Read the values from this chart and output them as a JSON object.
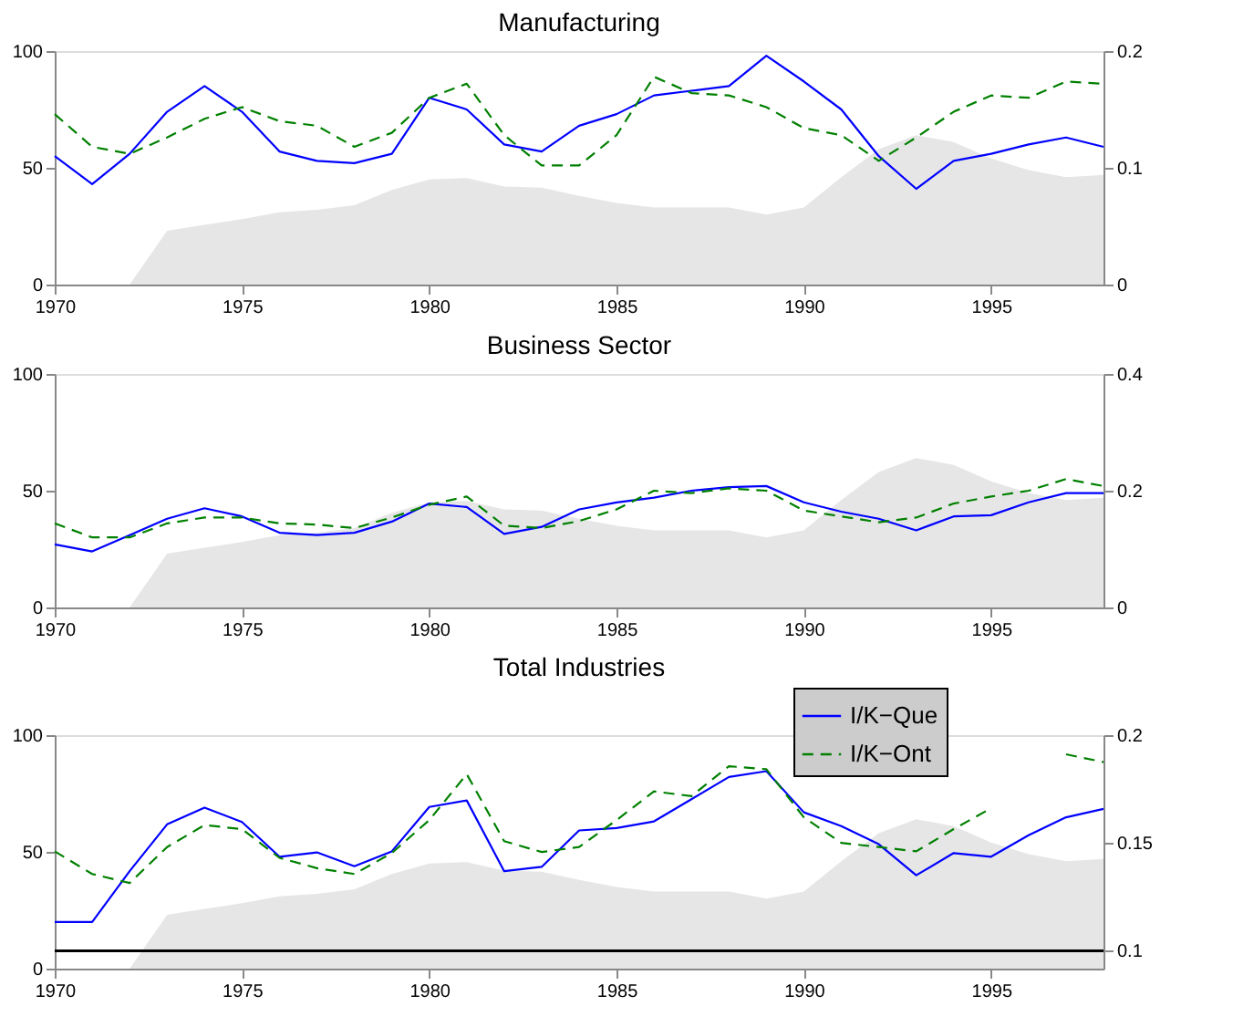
{
  "chart_data": [
    {
      "type": "line",
      "title": "Manufacturing",
      "x": [
        1970,
        1971,
        1972,
        1973,
        1974,
        1975,
        1976,
        1977,
        1978,
        1979,
        1980,
        1981,
        1982,
        1983,
        1984,
        1985,
        1986,
        1987,
        1988,
        1989,
        1990,
        1991,
        1992,
        1993,
        1994,
        1995,
        1996,
        1997,
        1998
      ],
      "xlim": [
        1970,
        1998
      ],
      "xticks": [
        1970,
        1975,
        1980,
        1985,
        1990,
        1995
      ],
      "ylim": [
        0,
        100
      ],
      "yticks": [
        0,
        50,
        100
      ],
      "y2lim": [
        0,
        0.2
      ],
      "y2ticks": [
        0,
        0.1,
        0.2
      ],
      "grid": false,
      "legend": false,
      "series": [
        {
          "type": "area",
          "color": "#e6e6e6",
          "values": [
            0,
            0,
            0,
            23,
            25.6,
            28,
            31,
            32,
            34,
            40.5,
            45,
            45.6,
            42,
            41.5,
            38,
            35,
            33,
            33,
            33,
            30,
            33,
            46,
            58,
            64,
            61,
            54,
            49,
            46,
            47
          ]
        },
        {
          "color": "#0000ff",
          "axis": "y2",
          "line_style": "solid",
          "values": [
            0.11,
            0.086,
            0.112,
            0.148,
            0.17,
            0.148,
            0.114,
            0.106,
            0.104,
            0.112,
            0.16,
            0.15,
            0.12,
            0.114,
            0.136,
            0.146,
            0.162,
            0.166,
            0.17,
            0.196,
            0.174,
            0.15,
            0.11,
            0.082,
            0.106,
            0.112,
            0.12,
            0.126,
            0.118
          ]
        },
        {
          "color": "#008000",
          "axis": "y2",
          "line_style": "dashed",
          "values": [
            0.146,
            0.118,
            0.112,
            0.126,
            0.142,
            0.152,
            0.14,
            0.136,
            0.118,
            0.13,
            0.16,
            0.172,
            0.128,
            0.102,
            0.102,
            0.128,
            0.178,
            0.164,
            0.162,
            0.152,
            0.134,
            0.128,
            0.106,
            0.126,
            0.148,
            0.162,
            0.16,
            0.174,
            0.172
          ]
        }
      ]
    },
    {
      "type": "line",
      "title": "Business Sector",
      "x": [
        1970,
        1971,
        1972,
        1973,
        1974,
        1975,
        1976,
        1977,
        1978,
        1979,
        1980,
        1981,
        1982,
        1983,
        1984,
        1985,
        1986,
        1987,
        1988,
        1989,
        1990,
        1991,
        1992,
        1993,
        1994,
        1995,
        1996,
        1997,
        1998
      ],
      "xlim": [
        1970,
        1998
      ],
      "xticks": [
        1970,
        1975,
        1980,
        1985,
        1990,
        1995
      ],
      "ylim": [
        0,
        100
      ],
      "yticks": [
        0,
        50,
        100
      ],
      "y2lim": [
        0,
        0.4
      ],
      "y2ticks": [
        0,
        0.2,
        0.4
      ],
      "grid": false,
      "legend": false,
      "series": [
        {
          "type": "area",
          "color": "#e6e6e6",
          "values": [
            0,
            0,
            0,
            23,
            25.6,
            28,
            31,
            32,
            34,
            40.5,
            45,
            45.6,
            42,
            41.5,
            38,
            35,
            33,
            33,
            33,
            30,
            33,
            46,
            58,
            64,
            61,
            54,
            49,
            46,
            47
          ]
        },
        {
          "color": "#0000ff",
          "axis": "y2",
          "line_style": "solid",
          "values": [
            0.108,
            0.096,
            0.124,
            0.152,
            0.17,
            0.156,
            0.128,
            0.124,
            0.128,
            0.147,
            0.178,
            0.172,
            0.126,
            0.138,
            0.168,
            0.18,
            0.188,
            0.2,
            0.206,
            0.208,
            0.18,
            0.164,
            0.152,
            0.132,
            0.156,
            0.158,
            0.18,
            0.196,
            0.196
          ]
        },
        {
          "color": "#008000",
          "axis": "y2",
          "line_style": "dashed",
          "values": [
            0.144,
            0.12,
            0.12,
            0.144,
            0.154,
            0.154,
            0.144,
            0.142,
            0.136,
            0.154,
            0.176,
            0.19,
            0.14,
            0.136,
            0.148,
            0.168,
            0.2,
            0.196,
            0.204,
            0.2,
            0.166,
            0.156,
            0.146,
            0.154,
            0.178,
            0.19,
            0.2,
            0.22,
            0.208
          ]
        }
      ]
    },
    {
      "type": "line",
      "title": "Total Industries",
      "x": [
        1970,
        1971,
        1972,
        1973,
        1974,
        1975,
        1976,
        1977,
        1978,
        1979,
        1980,
        1981,
        1982,
        1983,
        1984,
        1985,
        1986,
        1987,
        1988,
        1989,
        1990,
        1991,
        1992,
        1993,
        1994,
        1995,
        1996,
        1997,
        1998
      ],
      "xlim": [
        1970,
        1998
      ],
      "xticks": [
        1970,
        1975,
        1980,
        1985,
        1990,
        1995
      ],
      "ylim": [
        0,
        100
      ],
      "yticks": [
        0,
        50,
        100
      ],
      "y2lim": [
        0.0917,
        0.2
      ],
      "y2ticks": [
        0.1,
        0.15,
        0.2
      ],
      "grid": false,
      "legend": "top right",
      "ref_lines": [
        {
          "axis": "y2",
          "value": 0.1,
          "color": "#000000"
        }
      ],
      "series": [
        {
          "type": "area",
          "color": "#e6e6e6",
          "values": [
            0,
            0,
            0,
            23,
            25.6,
            28,
            31,
            32,
            34,
            40.5,
            45,
            45.6,
            42,
            41.5,
            38,
            35,
            33,
            33,
            33,
            30,
            33,
            46,
            58,
            64,
            61,
            54,
            49,
            46,
            47
          ]
        },
        {
          "name": "I/K−Que",
          "color": "#0000ff",
          "axis": "y2",
          "line_style": "solid",
          "values": [
            0.1133,
            0.1133,
            0.1369,
            0.1586,
            0.1664,
            0.1597,
            0.1436,
            0.1456,
            0.1392,
            0.1461,
            0.1667,
            0.1697,
            0.1369,
            0.1389,
            0.1558,
            0.1569,
            0.16,
            0.1703,
            0.1806,
            0.1833,
            0.1642,
            0.1578,
            0.1494,
            0.135,
            0.1453,
            0.1436,
            0.1536,
            0.1619,
            0.1658
          ]
        },
        {
          "name": "I/K−Ont",
          "color": "#008000",
          "axis": "y2",
          "line_style": "dashed",
          "values": [
            0.1461,
            0.1356,
            0.1314,
            0.1481,
            0.1583,
            0.1564,
            0.1431,
            0.1383,
            0.1356,
            0.1453,
            0.1606,
            0.1819,
            0.1508,
            0.1458,
            0.1481,
            0.1606,
            0.1739,
            0.1717,
            0.1856,
            0.1842,
            0.1619,
            0.15,
            0.1481,
            0.1461,
            0.1564,
            0.1661,
            null,
            0.1911,
            0.1875
          ]
        }
      ]
    }
  ]
}
